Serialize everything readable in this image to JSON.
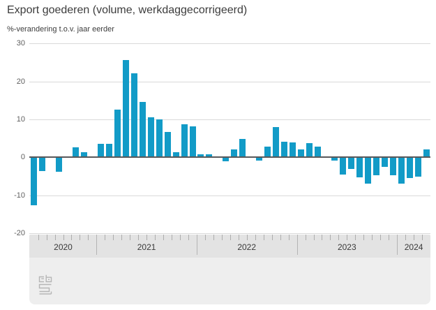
{
  "header": {
    "title": "Export goederen (volume, werkdaggecorrigeerd)",
    "subtitle": "%-verandering t.o.v. jaar eerder"
  },
  "colors": {
    "bar": "#129bc7",
    "zero_line": "#58585a",
    "gridline": "#d9d9d9",
    "axis_band_bg": "#e3e3e3",
    "footer_bg": "#eeeeee",
    "month_tick": "#adadad",
    "year_separator": "#b4b4b4",
    "year_label": "#3a3a3a",
    "ytick_label": "#5f5f5f",
    "title": "#3c3c3c"
  },
  "chart_data": {
    "type": "bar",
    "title": "Export goederen (volume, werkdaggecorrigeerd)",
    "ylabel": "%-verandering t.o.v. jaar eerder",
    "ylim": [
      -20,
      30
    ],
    "yticks": [
      30,
      20,
      10,
      0,
      -10,
      -20
    ],
    "grid": true,
    "legend_position": "none",
    "x": [
      "2020-05",
      "2020-06",
      "2020-07",
      "2020-08",
      "2020-09",
      "2020-10",
      "2020-11",
      "2020-12",
      "2021-01",
      "2021-02",
      "2021-03",
      "2021-04",
      "2021-05",
      "2021-06",
      "2021-07",
      "2021-08",
      "2021-09",
      "2021-10",
      "2021-11",
      "2021-12",
      "2022-01",
      "2022-02",
      "2022-03",
      "2022-04",
      "2022-05",
      "2022-06",
      "2022-07",
      "2022-08",
      "2022-09",
      "2022-10",
      "2022-11",
      "2022-12",
      "2023-01",
      "2023-02",
      "2023-03",
      "2023-04",
      "2023-05",
      "2023-06",
      "2023-07",
      "2023-08",
      "2023-09",
      "2023-10",
      "2023-11",
      "2023-12",
      "2024-01",
      "2024-02",
      "2024-03",
      "2024-04"
    ],
    "values": [
      -12.4,
      -3.5,
      0,
      -3.6,
      0,
      2.7,
      1.3,
      0,
      3.5,
      3.6,
      12.6,
      25.6,
      22.2,
      14.5,
      10.5,
      10.0,
      6.7,
      1.4,
      8.7,
      8.2,
      0.9,
      0.8,
      0,
      -0.8,
      2.1,
      4.8,
      0,
      -0.6,
      2.8,
      8.0,
      4.1,
      3.9,
      2.1,
      3.8,
      2.8,
      0,
      -0.6,
      -4.4,
      -2.8,
      -5.0,
      -6.8,
      -4.5,
      -2.4,
      -4.6,
      -6.8,
      -5.2,
      -4.8,
      2.2
    ],
    "xtick_year_labels": [
      "2020",
      "2021",
      "2022",
      "2023",
      "2024"
    ],
    "years": [
      {
        "label": "2020",
        "months": 8
      },
      {
        "label": "2021",
        "months": 12
      },
      {
        "label": "2022",
        "months": 12
      },
      {
        "label": "2023",
        "months": 12
      },
      {
        "label": "2024",
        "months": 4
      }
    ]
  },
  "branding": {
    "logo_name": "cbs-logo"
  }
}
